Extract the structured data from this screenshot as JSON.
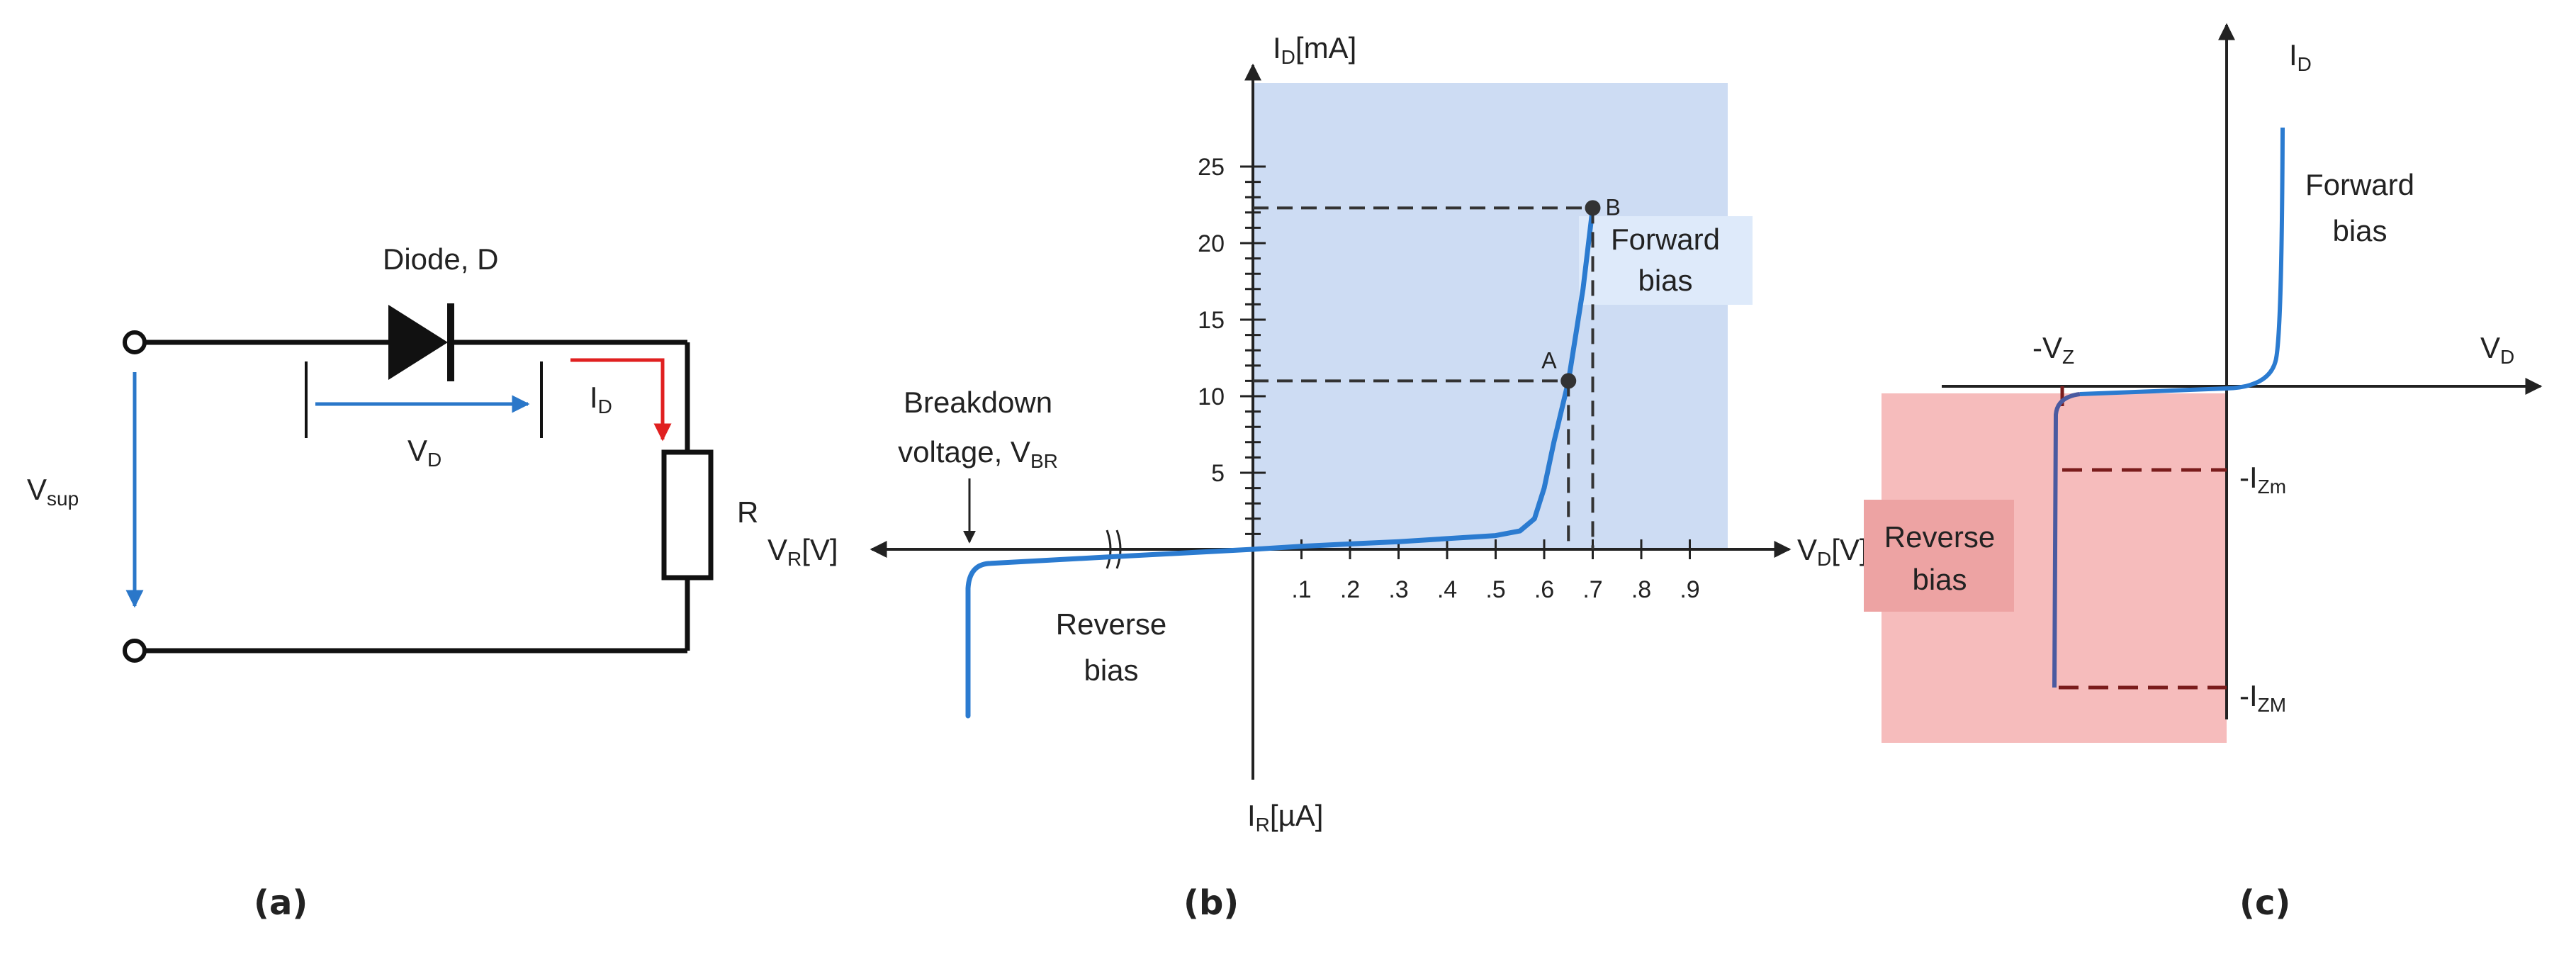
{
  "panel_a": {
    "caption": "(a)",
    "diode_label": "Diode, D",
    "vd_label": {
      "main": "V",
      "sub": "D"
    },
    "id_label": {
      "main": "I",
      "sub": "D"
    },
    "vsup_label": {
      "main": "V",
      "sub": "sup"
    },
    "resistor_label": "R",
    "colors": {
      "wire": "#111111",
      "vd_arrow": "#2a77c9",
      "id_arrow": "#e02020"
    }
  },
  "panel_b": {
    "caption": "(b)",
    "y_axis_label": {
      "main": "I",
      "sub": "D",
      "rest": "[mA]"
    },
    "y_neg_label": {
      "main": "I",
      "sub": "R",
      "rest": "[µA]"
    },
    "x_axis_label": {
      "main": "V",
      "sub": "D",
      "rest": "[V]"
    },
    "x_neg_label": {
      "main": "V",
      "sub": "R",
      "rest": "[V]"
    },
    "forward_label": [
      "Forward",
      "bias"
    ],
    "reverse_label": [
      "Reverse",
      "bias"
    ],
    "breakdown_label": {
      "line1": "Breakdown",
      "line2_main": "voltage, V",
      "line2_sub": "BR"
    },
    "point_a": "A",
    "point_b": "B",
    "colors": {
      "region": "#cddcf3",
      "forward_box": "#deeafa",
      "curve": "#2b7bd0",
      "axis": "#222222",
      "dash": "#333333"
    }
  },
  "panel_c": {
    "caption": "(c)",
    "y_axis_label": {
      "main": "I",
      "sub": "D"
    },
    "x_axis_label": {
      "main": "V",
      "sub": "D"
    },
    "vz_label": {
      "main": "-V",
      "sub": "Z"
    },
    "izm_small_label": {
      "main": "-I",
      "sub": "Zm"
    },
    "izm_large_label": {
      "main": "-I",
      "sub": "ZM"
    },
    "forward_label": [
      "Forward",
      "bias"
    ],
    "reverse_label": [
      "Reverse",
      "bias"
    ],
    "colors": {
      "region": "#f6bcbc",
      "label_box": "#eda3a3",
      "curve": "#2b7bd0",
      "curve_dark": "#4a5aa0",
      "dash": "#7a1c1c",
      "axis": "#222222"
    }
  },
  "chart_data": {
    "type": "line",
    "title": "",
    "xlabel": "V_D[V]",
    "ylabel": "I_D[mA]",
    "x_ticks": [
      ".1",
      ".2",
      ".3",
      ".4",
      ".5",
      ".6",
      ".7",
      ".8",
      ".9"
    ],
    "y_ticks": [
      "5",
      "10",
      "15",
      "20",
      "25"
    ],
    "xlim": [
      0,
      1.0
    ],
    "ylim": [
      0,
      26
    ],
    "grid": false,
    "series": [
      {
        "name": "",
        "x": [
          0.0,
          0.1,
          0.2,
          0.3,
          0.4,
          0.5,
          0.55,
          0.58,
          0.6,
          0.62,
          0.65,
          0.68,
          0.7
        ],
        "values": [
          0.0,
          0.2,
          0.35,
          0.5,
          0.7,
          0.9,
          1.2,
          2.0,
          4.0,
          7.0,
          11.0,
          17.0,
          22.3
        ]
      }
    ],
    "marked_points": [
      {
        "label": "A",
        "x": 0.65,
        "y": 11.0
      },
      {
        "label": "B",
        "x": 0.7,
        "y": 22.3
      }
    ]
  }
}
